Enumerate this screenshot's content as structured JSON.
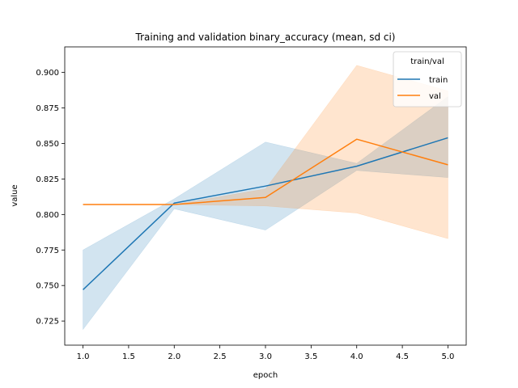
{
  "chart_data": {
    "type": "line",
    "title": "Training and validation binary_accuracy (mean, sd ci)",
    "xlabel": "epoch",
    "ylabel": "value",
    "xlim": [
      0.8,
      5.2
    ],
    "ylim": [
      0.708,
      0.918
    ],
    "x_ticks": [
      1.0,
      1.5,
      2.0,
      2.5,
      3.0,
      3.5,
      4.0,
      4.5,
      5.0
    ],
    "x_tick_labels": [
      "1.0",
      "1.5",
      "2.0",
      "2.5",
      "3.0",
      "3.5",
      "4.0",
      "4.5",
      "5.0"
    ],
    "y_ticks": [
      0.725,
      0.75,
      0.775,
      0.8,
      0.825,
      0.85,
      0.875,
      0.9
    ],
    "y_tick_labels": [
      "0.725",
      "0.750",
      "0.775",
      "0.800",
      "0.825",
      "0.850",
      "0.875",
      "0.900"
    ],
    "grid": false,
    "legend": {
      "title": "train/val",
      "placement": "top-right"
    },
    "x": [
      1,
      2,
      3,
      4,
      5
    ],
    "series": [
      {
        "name": "train",
        "color": "#1f77b4",
        "values": [
          0.747,
          0.808,
          0.82,
          0.834,
          0.854
        ],
        "ci_low": [
          0.719,
          0.804,
          0.789,
          0.831,
          0.826
        ],
        "ci_high": [
          0.775,
          0.811,
          0.851,
          0.836,
          0.883
        ]
      },
      {
        "name": "val",
        "color": "#ff7f0e",
        "values": [
          0.807,
          0.807,
          0.812,
          0.853,
          0.835
        ],
        "ci_low": [
          0.807,
          0.807,
          0.806,
          0.801,
          0.783
        ],
        "ci_high": [
          0.807,
          0.807,
          0.818,
          0.905,
          0.887
        ]
      }
    ]
  }
}
